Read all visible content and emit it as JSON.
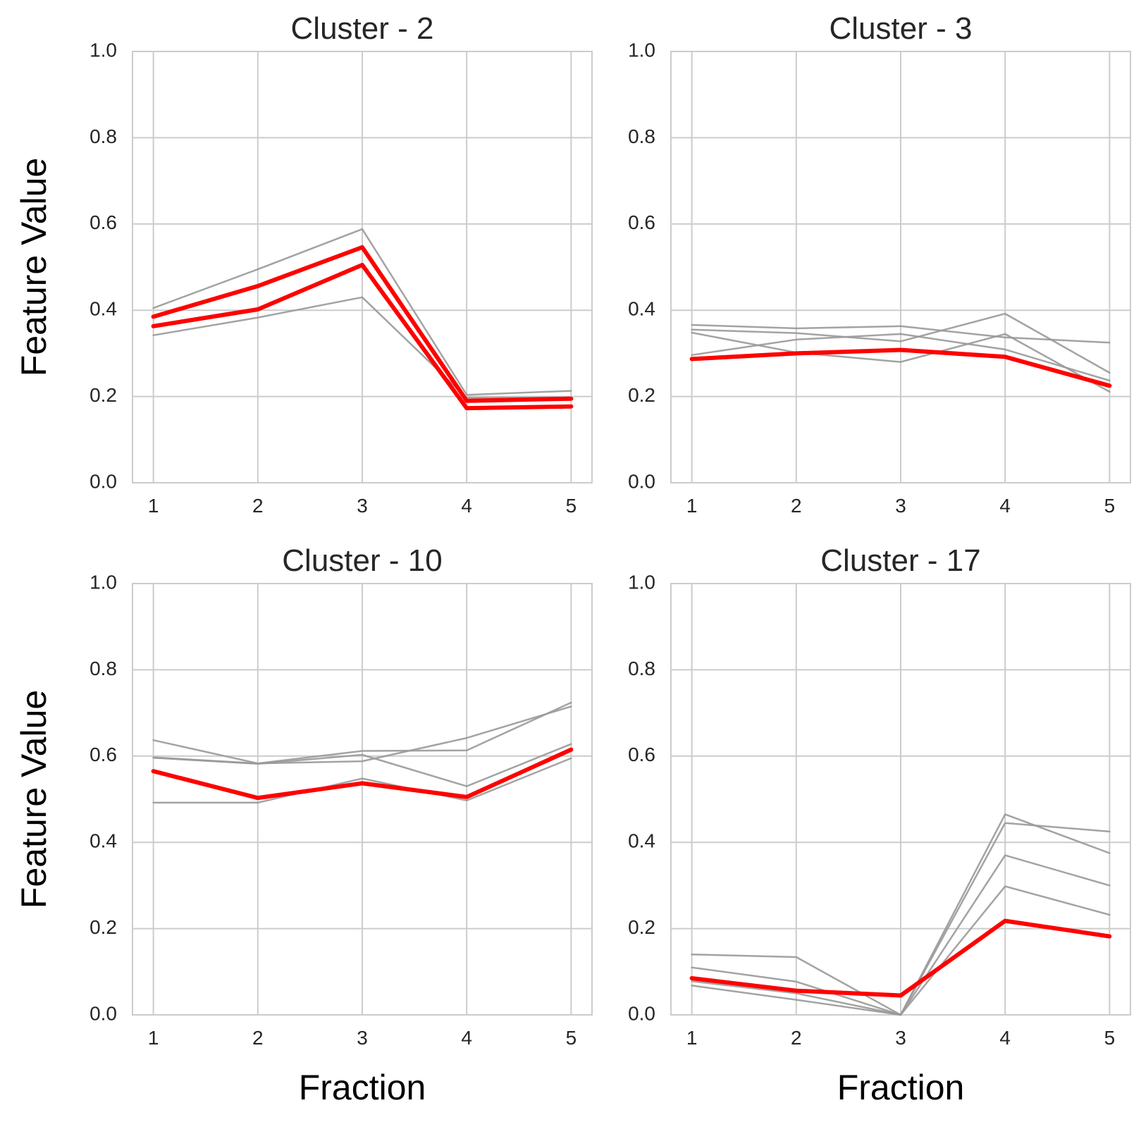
{
  "chart_data": [
    {
      "type": "line",
      "title": "Cluster - 2",
      "xlabel": "",
      "ylabel": "Feature Value",
      "x": [
        1,
        2,
        3,
        4,
        5
      ],
      "ylim": [
        0,
        1
      ],
      "yticks": [
        "0.0",
        "0.2",
        "0.4",
        "0.6",
        "0.8",
        "1.0"
      ],
      "xticks": [
        "1",
        "2",
        "3",
        "4",
        "5"
      ],
      "grid": true,
      "series": [
        {
          "color": "#999999",
          "values": [
            0.405,
            0.495,
            0.588,
            0.204,
            0.213
          ]
        },
        {
          "color": "#999999",
          "values": [
            0.342,
            0.383,
            0.43,
            0.197,
            0.198
          ]
        },
        {
          "color": "#ff0000",
          "values": [
            0.385,
            0.456,
            0.546,
            0.19,
            0.195
          ]
        },
        {
          "color": "#ff0000",
          "values": [
            0.363,
            0.402,
            0.505,
            0.173,
            0.177
          ]
        }
      ]
    },
    {
      "type": "line",
      "title": "Cluster - 3",
      "xlabel": "",
      "ylabel": "",
      "x": [
        1,
        2,
        3,
        4,
        5
      ],
      "ylim": [
        0,
        1
      ],
      "yticks": [
        "0.0",
        "0.2",
        "0.4",
        "0.6",
        "0.8",
        "1.0"
      ],
      "xticks": [
        "1",
        "2",
        "3",
        "4",
        "5"
      ],
      "grid": true,
      "series": [
        {
          "color": "#999999",
          "values": [
            0.366,
            0.358,
            0.363,
            0.337,
            0.325
          ]
        },
        {
          "color": "#999999",
          "values": [
            0.355,
            0.347,
            0.328,
            0.392,
            0.255
          ]
        },
        {
          "color": "#999999",
          "values": [
            0.296,
            0.332,
            0.345,
            0.309,
            0.237
          ]
        },
        {
          "color": "#999999",
          "values": [
            0.348,
            0.302,
            0.28,
            0.345,
            0.211
          ]
        },
        {
          "color": "#ff0000",
          "values": [
            0.287,
            0.3,
            0.308,
            0.292,
            0.225
          ]
        }
      ]
    },
    {
      "type": "line",
      "title": "Cluster - 10",
      "xlabel": "Fraction",
      "ylabel": "Feature Value",
      "x": [
        1,
        2,
        3,
        4,
        5
      ],
      "ylim": [
        0,
        1
      ],
      "yticks": [
        "0.0",
        "0.2",
        "0.4",
        "0.6",
        "0.8",
        "1.0"
      ],
      "xticks": [
        "1",
        "2",
        "3",
        "4",
        "5"
      ],
      "grid": true,
      "series": [
        {
          "color": "#999999",
          "values": [
            0.637,
            0.583,
            0.612,
            0.613,
            0.724
          ]
        },
        {
          "color": "#999999",
          "values": [
            0.597,
            0.583,
            0.588,
            0.642,
            0.715
          ]
        },
        {
          "color": "#999999",
          "values": [
            0.596,
            0.582,
            0.603,
            0.53,
            0.628
          ]
        },
        {
          "color": "#999999",
          "values": [
            0.492,
            0.492,
            0.548,
            0.497,
            0.595
          ]
        },
        {
          "color": "#ff0000",
          "values": [
            0.565,
            0.503,
            0.537,
            0.505,
            0.615
          ]
        }
      ]
    },
    {
      "type": "line",
      "title": "Cluster - 17",
      "xlabel": "Fraction",
      "ylabel": "",
      "x": [
        1,
        2,
        3,
        4,
        5
      ],
      "ylim": [
        0,
        1
      ],
      "yticks": [
        "0.0",
        "0.2",
        "0.4",
        "0.6",
        "0.8",
        "1.0"
      ],
      "xticks": [
        "1",
        "2",
        "3",
        "4",
        "5"
      ],
      "grid": true,
      "series": [
        {
          "color": "#999999",
          "values": [
            0.14,
            0.134,
            0.0,
            0.445,
            0.425
          ]
        },
        {
          "color": "#999999",
          "values": [
            0.11,
            0.077,
            0.0,
            0.465,
            0.375
          ]
        },
        {
          "color": "#999999",
          "values": [
            0.078,
            0.05,
            0.0,
            0.37,
            0.3
          ]
        },
        {
          "color": "#999999",
          "values": [
            0.068,
            0.035,
            0.0,
            0.298,
            0.232
          ]
        },
        {
          "color": "#ff0000",
          "values": [
            0.085,
            0.056,
            0.045,
            0.218,
            0.182
          ]
        }
      ]
    }
  ]
}
